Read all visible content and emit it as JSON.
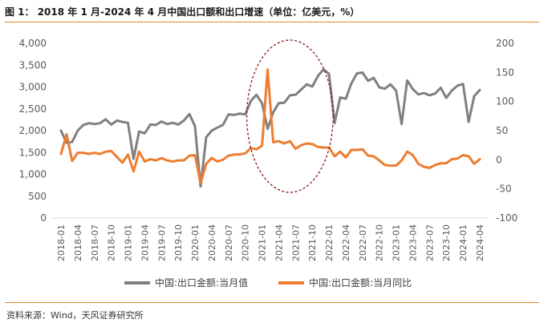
{
  "figure": {
    "title": "图 1：  2018 年 1 月-2024 年 4 月中国出口额和出口增速（单位：亿美元，%）",
    "source": "资料来源：Wind，天风证券研究所"
  },
  "colors": {
    "accent_rule": "#E8872D",
    "value_series": "#808080",
    "yoy_series": "#ED7D31",
    "highlight_ellipse": "#8B1A1A",
    "axis_text": "#595959"
  },
  "chart_data": {
    "type": "line",
    "title": "",
    "x": [
      "2018-01",
      "2018-02",
      "2018-03",
      "2018-04",
      "2018-05",
      "2018-06",
      "2018-07",
      "2018-08",
      "2018-09",
      "2018-10",
      "2018-11",
      "2018-12",
      "2019-01",
      "2019-02",
      "2019-03",
      "2019-04",
      "2019-05",
      "2019-06",
      "2019-07",
      "2019-08",
      "2019-09",
      "2019-10",
      "2019-11",
      "2019-12",
      "2020-01",
      "2020-02",
      "2020-03",
      "2020-04",
      "2020-05",
      "2020-06",
      "2020-07",
      "2020-08",
      "2020-09",
      "2020-10",
      "2020-11",
      "2020-12",
      "2021-01",
      "2021-02",
      "2021-03",
      "2021-04",
      "2021-05",
      "2021-06",
      "2021-07",
      "2021-08",
      "2021-09",
      "2021-10",
      "2021-11",
      "2021-12",
      "2022-01",
      "2022-02",
      "2022-03",
      "2022-04",
      "2022-05",
      "2022-06",
      "2022-07",
      "2022-08",
      "2022-09",
      "2022-10",
      "2022-11",
      "2022-12",
      "2023-01",
      "2023-02",
      "2023-03",
      "2023-04",
      "2023-05",
      "2023-06",
      "2023-07",
      "2023-08",
      "2023-09",
      "2023-10",
      "2023-11",
      "2023-12",
      "2024-01",
      "2024-02",
      "2024-03",
      "2024-04"
    ],
    "x_tick_labels": [
      "2018-01",
      "2018-04",
      "2018-07",
      "2018-10",
      "2019-01",
      "2019-04",
      "2019-07",
      "2019-10",
      "2020-01",
      "2020-04",
      "2020-07",
      "2020-10",
      "2021-01",
      "2021-04",
      "2021-07",
      "2021-10",
      "2022-01",
      "2022-04",
      "2022-07",
      "2022-10",
      "2023-01",
      "2023-04",
      "2023-07",
      "2023-10",
      "2024-01",
      "2024-04"
    ],
    "y_left": {
      "ylim": [
        0,
        4000
      ],
      "ticks": [
        "0",
        "500",
        "1,000",
        "1,500",
        "2,000",
        "2,500",
        "3,000",
        "3,500",
        "4,000"
      ]
    },
    "y_right": {
      "ylim": [
        -100,
        200
      ],
      "ticks": [
        "-100",
        "-50",
        "0",
        "50",
        "100",
        "150",
        "200"
      ]
    },
    "series": [
      {
        "name": "中国:出口金额:当月值",
        "axis": "left",
        "color": "#808080",
        "values": [
          2000,
          1720,
          1740,
          2000,
          2130,
          2170,
          2150,
          2170,
          2260,
          2140,
          2230,
          2200,
          2180,
          1350,
          1980,
          1940,
          2140,
          2130,
          2210,
          2150,
          2180,
          2140,
          2230,
          2380,
          2100,
          720,
          1850,
          2000,
          2070,
          2130,
          2370,
          2360,
          2390,
          2370,
          2680,
          2820,
          2630,
          2040,
          2420,
          2630,
          2640,
          2810,
          2820,
          2940,
          3060,
          3010,
          3250,
          3400,
          3300,
          2170,
          2760,
          2730,
          3080,
          3310,
          3330,
          3140,
          3210,
          2990,
          2960,
          3060,
          2920,
          2150,
          3150,
          2950,
          2830,
          2860,
          2810,
          2850,
          2980,
          2750,
          2920,
          3030,
          3070,
          2200,
          2790,
          2930
        ]
      },
      {
        "name": "中国:出口金额:当月同比",
        "axis": "right",
        "color": "#ED7D31",
        "values": [
          10,
          44,
          -2,
          12,
          12,
          10,
          12,
          10,
          14,
          15,
          5,
          -5,
          9,
          -20,
          14,
          -3,
          1,
          -1,
          3,
          -1,
          -3,
          -1,
          -1,
          7,
          8,
          -40,
          -7,
          3,
          -3,
          0,
          7,
          9,
          9,
          11,
          20,
          18,
          24,
          155,
          30,
          32,
          28,
          32,
          19,
          25,
          28,
          27,
          22,
          21,
          21,
          6,
          14,
          4,
          17,
          17,
          18,
          7,
          6,
          -1,
          -9,
          -10,
          -10,
          -1,
          14,
          8,
          -7,
          -12,
          -14,
          -9,
          -6,
          -6,
          1,
          2,
          8,
          6,
          -7,
          1
        ]
      }
    ],
    "highlight": {
      "shape": "ellipse",
      "style": "dashed",
      "from": "2020-12",
      "to": "2021-12"
    },
    "grid": false,
    "legend": "bottom"
  }
}
